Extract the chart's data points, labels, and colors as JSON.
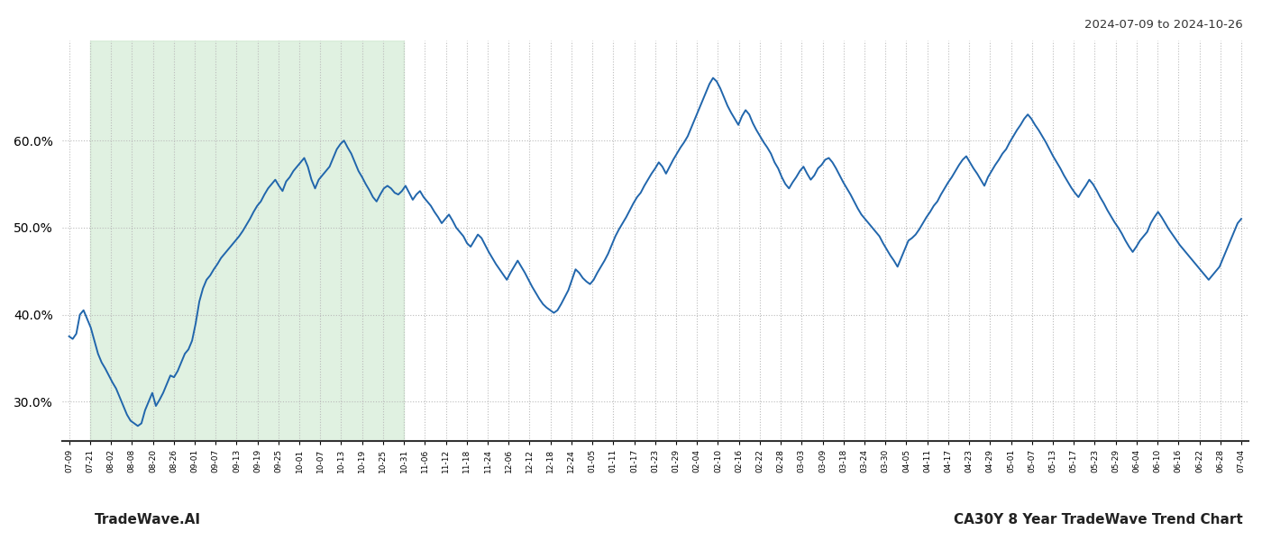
{
  "title_top_right": "2024-07-09 to 2024-10-26",
  "bottom_left": "TradeWave.AI",
  "bottom_right": "CA30Y 8 Year TradeWave Trend Chart",
  "line_color": "#2166ac",
  "line_width": 1.4,
  "bg_color": "#ffffff",
  "shade_color": "#c8e6c9",
  "shade_alpha": 0.55,
  "ylim": [
    0.255,
    0.715
  ],
  "yticks": [
    0.3,
    0.4,
    0.5,
    0.6
  ],
  "ytick_labels": [
    "30.0%",
    "40.0%",
    "50.0%",
    "60.0%"
  ],
  "grid_color": "#bbbbbb",
  "grid_style": ":",
  "x_labels": [
    "07-09",
    "07-21",
    "08-02",
    "08-08",
    "08-20",
    "08-26",
    "09-01",
    "09-07",
    "09-13",
    "09-19",
    "09-25",
    "10-01",
    "10-07",
    "10-13",
    "10-19",
    "10-25",
    "10-31",
    "11-06",
    "11-12",
    "11-18",
    "11-24",
    "12-06",
    "12-12",
    "12-18",
    "12-24",
    "01-05",
    "01-11",
    "01-17",
    "01-23",
    "01-29",
    "02-04",
    "02-10",
    "02-16",
    "02-22",
    "02-28",
    "03-03",
    "03-09",
    "03-18",
    "03-24",
    "03-30",
    "04-05",
    "04-11",
    "04-17",
    "04-23",
    "04-29",
    "05-01",
    "05-07",
    "05-13",
    "05-17",
    "05-23",
    "05-29",
    "06-04",
    "06-10",
    "06-16",
    "06-22",
    "06-28",
    "07-04"
  ],
  "shade_start_label": "07-21",
  "shade_end_label": "10-31",
  "values": [
    0.375,
    0.372,
    0.378,
    0.4,
    0.405,
    0.395,
    0.385,
    0.37,
    0.355,
    0.345,
    0.338,
    0.33,
    0.322,
    0.315,
    0.305,
    0.295,
    0.285,
    0.278,
    0.275,
    0.272,
    0.275,
    0.29,
    0.3,
    0.31,
    0.295,
    0.302,
    0.31,
    0.32,
    0.33,
    0.328,
    0.335,
    0.345,
    0.355,
    0.36,
    0.37,
    0.39,
    0.415,
    0.43,
    0.44,
    0.445,
    0.452,
    0.458,
    0.465,
    0.47,
    0.475,
    0.48,
    0.485,
    0.49,
    0.496,
    0.503,
    0.51,
    0.518,
    0.525,
    0.53,
    0.538,
    0.545,
    0.55,
    0.555,
    0.548,
    0.542,
    0.553,
    0.558,
    0.565,
    0.57,
    0.575,
    0.58,
    0.57,
    0.555,
    0.545,
    0.555,
    0.56,
    0.565,
    0.57,
    0.58,
    0.59,
    0.596,
    0.6,
    0.592,
    0.585,
    0.575,
    0.565,
    0.558,
    0.55,
    0.543,
    0.535,
    0.53,
    0.538,
    0.545,
    0.548,
    0.545,
    0.54,
    0.538,
    0.542,
    0.548,
    0.54,
    0.532,
    0.538,
    0.542,
    0.535,
    0.53,
    0.525,
    0.518,
    0.512,
    0.505,
    0.51,
    0.515,
    0.508,
    0.5,
    0.495,
    0.49,
    0.482,
    0.478,
    0.485,
    0.492,
    0.488,
    0.48,
    0.472,
    0.465,
    0.458,
    0.452,
    0.446,
    0.44,
    0.448,
    0.455,
    0.462,
    0.455,
    0.448,
    0.44,
    0.432,
    0.425,
    0.418,
    0.412,
    0.408,
    0.405,
    0.402,
    0.405,
    0.412,
    0.42,
    0.428,
    0.44,
    0.452,
    0.448,
    0.442,
    0.438,
    0.435,
    0.44,
    0.448,
    0.455,
    0.462,
    0.47,
    0.48,
    0.49,
    0.498,
    0.505,
    0.512,
    0.52,
    0.528,
    0.535,
    0.54,
    0.548,
    0.555,
    0.562,
    0.568,
    0.575,
    0.57,
    0.562,
    0.57,
    0.578,
    0.585,
    0.592,
    0.598,
    0.605,
    0.615,
    0.625,
    0.635,
    0.645,
    0.655,
    0.665,
    0.672,
    0.668,
    0.66,
    0.65,
    0.64,
    0.632,
    0.625,
    0.618,
    0.628,
    0.635,
    0.63,
    0.62,
    0.612,
    0.605,
    0.598,
    0.592,
    0.585,
    0.575,
    0.568,
    0.558,
    0.55,
    0.545,
    0.552,
    0.558,
    0.565,
    0.57,
    0.562,
    0.555,
    0.56,
    0.568,
    0.572,
    0.578,
    0.58,
    0.575,
    0.568,
    0.56,
    0.552,
    0.545,
    0.538,
    0.53,
    0.522,
    0.515,
    0.51,
    0.505,
    0.5,
    0.495,
    0.49,
    0.482,
    0.475,
    0.468,
    0.462,
    0.455,
    0.465,
    0.475,
    0.485,
    0.488,
    0.492,
    0.498,
    0.505,
    0.512,
    0.518,
    0.525,
    0.53,
    0.538,
    0.545,
    0.552,
    0.558,
    0.565,
    0.572,
    0.578,
    0.582,
    0.575,
    0.568,
    0.562,
    0.555,
    0.548,
    0.558,
    0.565,
    0.572,
    0.578,
    0.585,
    0.59,
    0.598,
    0.605,
    0.612,
    0.618,
    0.625,
    0.63,
    0.625,
    0.618,
    0.612,
    0.605,
    0.598,
    0.59,
    0.582,
    0.575,
    0.568,
    0.56,
    0.553,
    0.546,
    0.54,
    0.535,
    0.542,
    0.548,
    0.555,
    0.55,
    0.543,
    0.535,
    0.528,
    0.52,
    0.513,
    0.506,
    0.5,
    0.493,
    0.485,
    0.478,
    0.472,
    0.478,
    0.485,
    0.49,
    0.495,
    0.505,
    0.512,
    0.518,
    0.512,
    0.505,
    0.498,
    0.492,
    0.486,
    0.48,
    0.475,
    0.47,
    0.465,
    0.46,
    0.455,
    0.45,
    0.445,
    0.44,
    0.445,
    0.45,
    0.455,
    0.465,
    0.475,
    0.485,
    0.495,
    0.505,
    0.51
  ]
}
